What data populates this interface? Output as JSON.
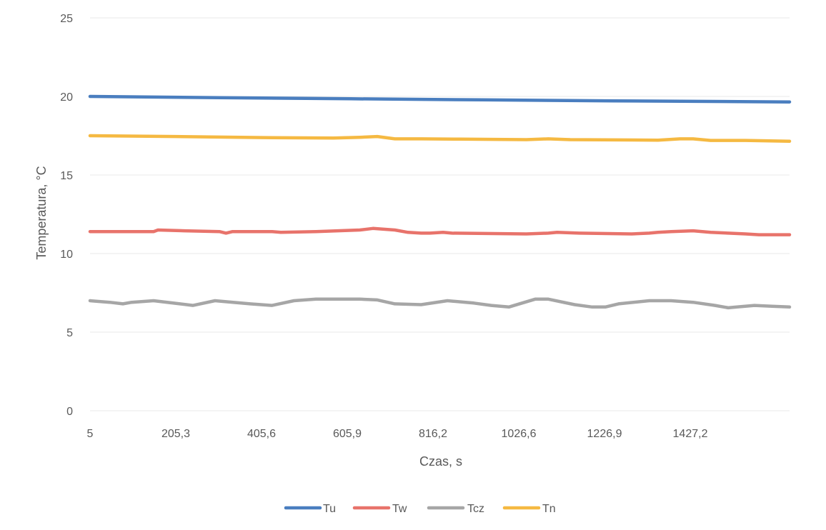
{
  "chart_data": {
    "type": "line",
    "title": "",
    "xlabel": "Czas, s",
    "ylabel": "Temperatura, °C",
    "ylim": [
      0,
      25
    ],
    "yticks": [
      "0",
      "5",
      "10",
      "15",
      "20",
      "25"
    ],
    "xticks": [
      "5",
      "205,3",
      "405,6",
      "605,9",
      "816,2",
      "1026,6",
      "1226,9",
      "1427,2"
    ],
    "xlim": [
      5,
      1600
    ],
    "grid": true,
    "legend_position": "bottom",
    "series": [
      {
        "name": "Tu",
        "color": "#4a7ebf",
        "x": [
          5,
          300,
          600,
          900,
          1200,
          1600
        ],
        "y": [
          20.0,
          19.92,
          19.85,
          19.78,
          19.72,
          19.65
        ]
      },
      {
        "name": "Tw",
        "color": "#e8736b",
        "x": [
          5,
          150,
          160,
          220,
          300,
          315,
          330,
          420,
          440,
          520,
          620,
          650,
          700,
          730,
          760,
          780,
          810,
          830,
          1000,
          1050,
          1070,
          1120,
          1240,
          1280,
          1300,
          1330,
          1380,
          1420,
          1460,
          1500,
          1530,
          1560,
          1600
        ],
        "y": [
          11.4,
          11.4,
          11.5,
          11.45,
          11.4,
          11.3,
          11.4,
          11.4,
          11.35,
          11.4,
          11.5,
          11.6,
          11.5,
          11.35,
          11.3,
          11.3,
          11.35,
          11.3,
          11.25,
          11.3,
          11.35,
          11.3,
          11.25,
          11.3,
          11.35,
          11.4,
          11.45,
          11.35,
          11.3,
          11.25,
          11.2,
          11.2,
          11.2
        ]
      },
      {
        "name": "Tcz",
        "color": "#a6a6a6",
        "x": [
          5,
          50,
          80,
          100,
          150,
          210,
          240,
          290,
          370,
          420,
          470,
          520,
          620,
          660,
          700,
          760,
          820,
          880,
          920,
          960,
          1020,
          1050,
          1110,
          1150,
          1180,
          1210,
          1280,
          1330,
          1380,
          1430,
          1460,
          1480,
          1520,
          1560,
          1600
        ],
        "y": [
          7.0,
          6.9,
          6.8,
          6.9,
          7.0,
          6.8,
          6.7,
          7.0,
          6.8,
          6.7,
          7.0,
          7.1,
          7.1,
          7.05,
          6.8,
          6.75,
          7.0,
          6.85,
          6.7,
          6.6,
          7.1,
          7.1,
          6.75,
          6.6,
          6.6,
          6.8,
          7.0,
          7.0,
          6.9,
          6.7,
          6.55,
          6.6,
          6.7,
          6.65,
          6.6
        ]
      },
      {
        "name": "Tn",
        "color": "#f5b942",
        "x": [
          5,
          200,
          400,
          560,
          620,
          660,
          700,
          760,
          850,
          1000,
          1050,
          1100,
          1300,
          1350,
          1380,
          1420,
          1460,
          1500,
          1600
        ],
        "y": [
          17.5,
          17.45,
          17.38,
          17.35,
          17.4,
          17.45,
          17.3,
          17.3,
          17.28,
          17.25,
          17.3,
          17.25,
          17.22,
          17.3,
          17.3,
          17.2,
          17.2,
          17.2,
          17.15
        ]
      }
    ]
  }
}
